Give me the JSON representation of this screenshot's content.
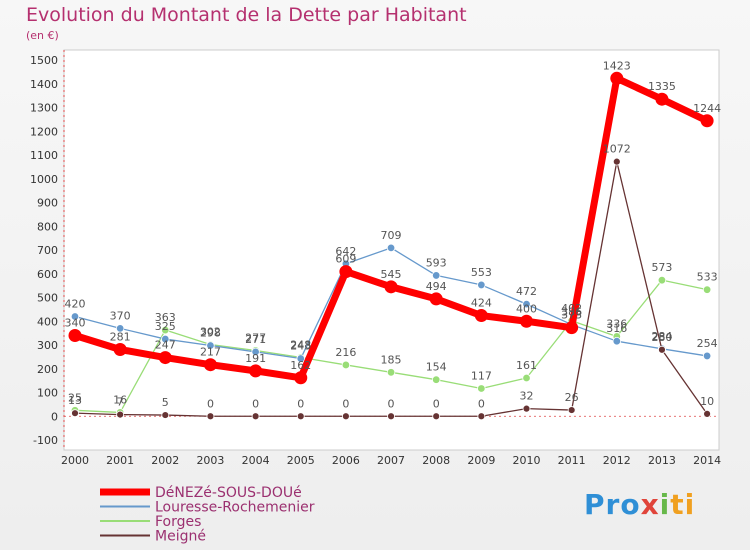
{
  "chart_data": {
    "type": "line",
    "title": "Evolution du Montant de la Dette par Habitant",
    "subtitle": "(en €)",
    "xlabel": "",
    "ylabel": "",
    "categories": [
      "2000",
      "2001",
      "2002",
      "2003",
      "2004",
      "2005",
      "2006",
      "2007",
      "2008",
      "2009",
      "2010",
      "2011",
      "2012",
      "2013",
      "2014"
    ],
    "y_ticks": [
      -100,
      0,
      100,
      200,
      300,
      400,
      500,
      600,
      700,
      800,
      900,
      1000,
      1100,
      1200,
      1300,
      1400,
      1500
    ],
    "ylim": [
      -100,
      1500
    ],
    "grid": false,
    "legend_position": "bottom-left",
    "series": [
      {
        "name": "DéNEZé-SOUS-DOUé",
        "color": "#ff0000",
        "values": [
          340,
          281,
          247,
          217,
          191,
          162,
          609,
          545,
          494,
          424,
          400,
          373,
          1423,
          1335,
          1244
        ]
      },
      {
        "name": "Louresse-Rochemenier",
        "color": "#6699cc",
        "values": [
          420,
          370,
          325,
          298,
          271,
          243,
          642,
          709,
          593,
          553,
          472,
          386,
          316,
          284,
          254
        ]
      },
      {
        "name": "Forges",
        "color": "#99dd77",
        "values": [
          25,
          16,
          363,
          302,
          277,
          248,
          216,
          185,
          154,
          117,
          161,
          402,
          336,
          573,
          533
        ]
      },
      {
        "name": "Meigné",
        "color": "#663333",
        "values": [
          13,
          7,
          5,
          0,
          0,
          0,
          0,
          0,
          0,
          0,
          32,
          26,
          1072,
          280,
          10
        ]
      }
    ],
    "data_labels": [
      [
        "340",
        "281",
        "247",
        "217",
        "191",
        "162",
        "609",
        "545",
        "494",
        "424",
        "400",
        "373",
        "1423",
        "1335",
        "1244"
      ],
      [
        "420",
        "370",
        "325",
        "298",
        "271",
        "243",
        "642",
        "709",
        "593",
        "553",
        "472",
        "386",
        "316",
        "284",
        "254"
      ],
      [
        "25",
        "16",
        "363",
        "302",
        "277",
        "248",
        "216",
        "185",
        "154",
        "117",
        "161",
        "402",
        "336",
        "573",
        "533"
      ],
      [
        "13",
        "7",
        "5",
        "0",
        "0",
        "0",
        "0",
        "0",
        "0",
        "0",
        "32",
        "26",
        "1072",
        "280",
        "10"
      ]
    ]
  },
  "watermark": {
    "part1": "Pro",
    "part2": "x",
    "part3": "i",
    "part4": "ti"
  }
}
